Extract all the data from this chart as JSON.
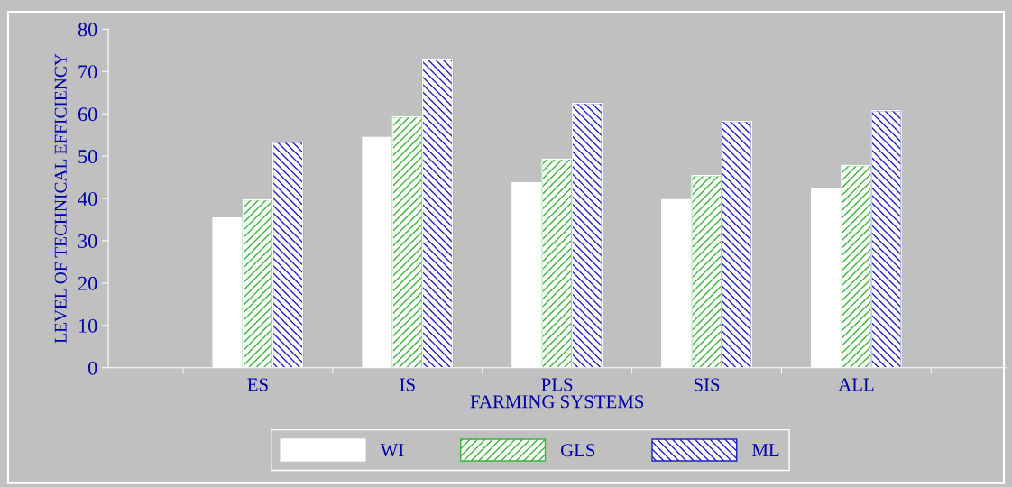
{
  "chart_data": {
    "type": "bar",
    "xlabel": "FARMING SYSTEMS",
    "ylabel": "LEVEL OF TECHNICAL EFFICIENCY",
    "categories": [
      "ES",
      "IS",
      "PLS",
      "SIS",
      "ALL"
    ],
    "series": [
      {
        "name": "WI",
        "color": "#ffffff",
        "values": [
          35.4,
          54.4,
          43.7,
          39.7,
          42.2
        ]
      },
      {
        "name": "GLS",
        "color": "#3cb43c",
        "values": [
          39.7,
          59.3,
          49.3,
          45.4,
          47.8
        ]
      },
      {
        "name": "ML",
        "color": "#2020c0",
        "values": [
          53.3,
          72.9,
          62.5,
          58.2,
          60.8
        ]
      }
    ],
    "ylim": [
      0,
      80
    ],
    "yticks": [
      0,
      10,
      20,
      30,
      40,
      50,
      60,
      70,
      80
    ],
    "grid": false,
    "legend": "bottom"
  }
}
